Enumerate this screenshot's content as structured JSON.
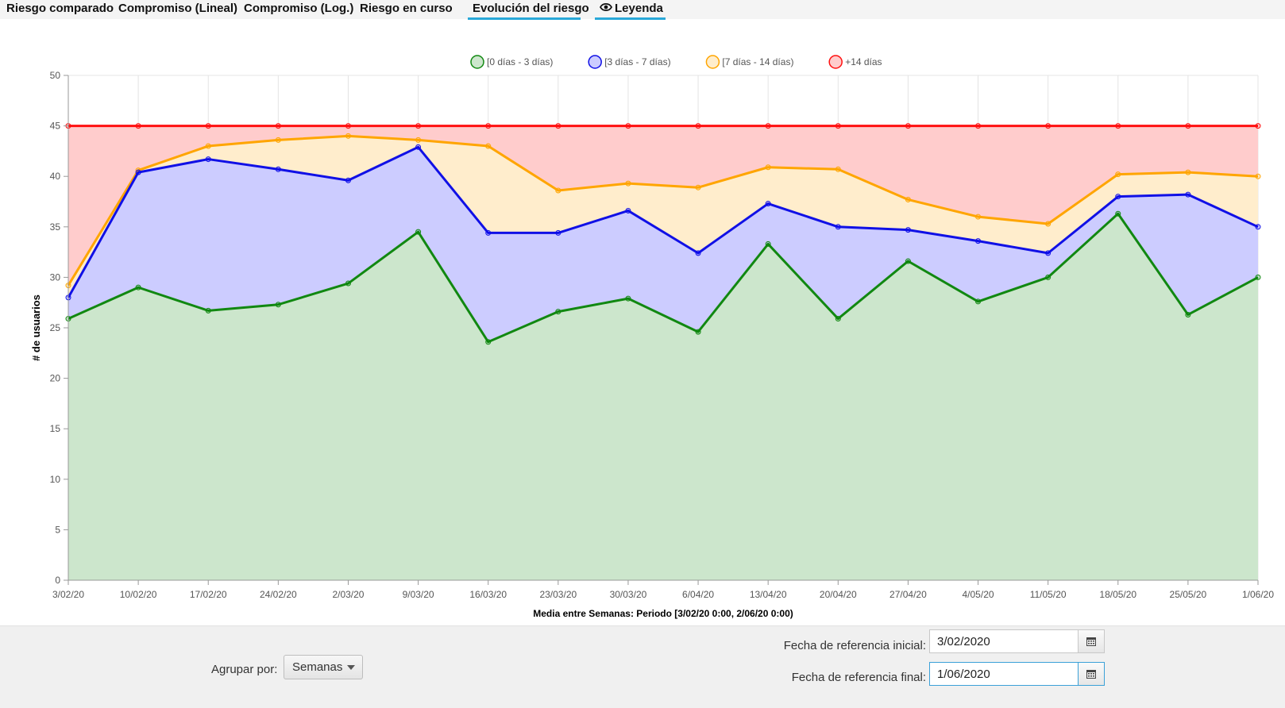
{
  "tabs": [
    {
      "label": "Riesgo comparado",
      "underlined": false
    },
    {
      "label": "Compromiso (Lineal)",
      "underlined": false
    },
    {
      "label": "Compromiso (Log.)",
      "underlined": false
    },
    {
      "label": "Riesgo en curso",
      "underlined": false
    },
    {
      "label": "Evolución del riesgo",
      "underlined": true
    },
    {
      "label": "Leyenda",
      "underlined": true,
      "icon": "eye-icon"
    }
  ],
  "controls": {
    "group_label": "Agrupar por:",
    "group_value": "Semanas",
    "start_label": "Fecha de referencia inicial:",
    "start_value": "3/02/2020",
    "end_label": "Fecha de referencia final:",
    "end_value": "1/06/2020",
    "calendar_icon": "calendar-icon",
    "dropdown_icon": "chevron-down-icon"
  },
  "chart_data": {
    "type": "area",
    "stacked": false,
    "x": [
      "3/02/20",
      "10/02/20",
      "17/02/20",
      "24/02/20",
      "2/03/20",
      "9/03/20",
      "16/03/20",
      "23/03/20",
      "30/03/20",
      "6/04/20",
      "13/04/20",
      "20/04/20",
      "27/04/20",
      "4/05/20",
      "11/05/20",
      "18/05/20",
      "25/05/20",
      "1/06/20"
    ],
    "xlabel": "Media entre Semanas: Periodo [3/02/20 0:00, 2/06/20 0:00)",
    "ylabel": "# de usuarios",
    "ylim": [
      0,
      50
    ],
    "yticks": [
      0,
      5,
      10,
      15,
      20,
      25,
      30,
      35,
      40,
      45,
      50
    ],
    "grid": true,
    "legend_position": "top",
    "series": [
      {
        "name": "[0 días - 3 días)",
        "color": "#118811",
        "fill": "rgba(0,128,0,0.2)",
        "values": [
          25.9,
          29.0,
          26.7,
          27.3,
          29.4,
          34.5,
          23.6,
          26.6,
          27.9,
          24.6,
          33.3,
          25.9,
          31.6,
          27.6,
          30.0,
          36.3,
          26.3,
          30.0
        ]
      },
      {
        "name": "[3 días - 7 días)",
        "color": "#1010e6",
        "fill": "rgba(0,0,255,0.2)",
        "values": [
          28.0,
          40.4,
          41.7,
          40.7,
          39.6,
          42.9,
          34.4,
          34.4,
          36.6,
          32.4,
          37.3,
          35.0,
          34.7,
          33.6,
          32.4,
          38.0,
          38.2,
          35.0
        ]
      },
      {
        "name": "[7 días - 14 días)",
        "color": "#ffa500",
        "fill": "rgba(255,165,0,0.2)",
        "values": [
          29.2,
          40.6,
          43.0,
          43.6,
          44.0,
          43.6,
          43.0,
          38.6,
          39.3,
          38.9,
          40.9,
          40.7,
          37.7,
          36.0,
          35.3,
          40.2,
          40.4,
          40.0
        ]
      },
      {
        "name": "+14 días",
        "color": "#ff1010",
        "fill": "rgba(255,0,0,0.2)",
        "values": [
          45,
          45,
          45,
          45,
          45,
          45,
          45,
          45,
          45,
          45,
          45,
          45,
          45,
          45,
          45,
          45,
          45,
          45
        ]
      }
    ]
  }
}
